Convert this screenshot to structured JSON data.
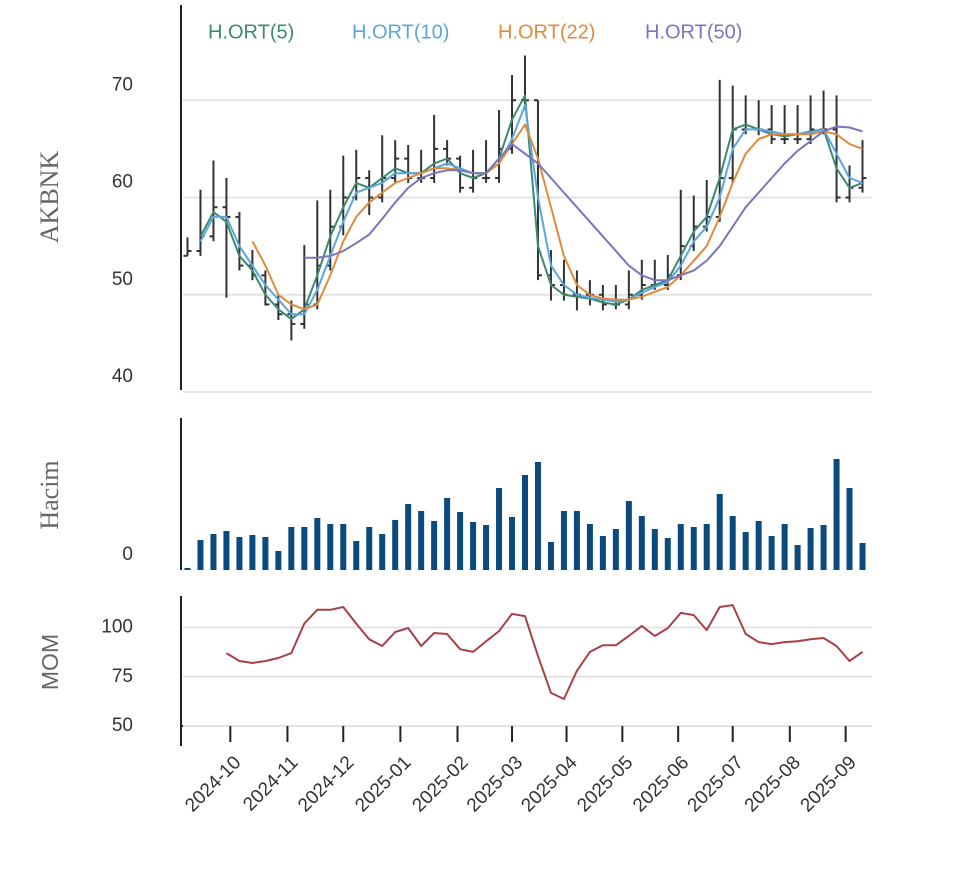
{
  "chart_data": [
    {
      "type": "candlestick",
      "y_label": "AKBNK",
      "x": [
        0,
        1,
        2,
        3,
        4,
        5,
        6,
        7,
        8,
        9,
        10,
        11,
        12,
        13,
        14,
        15,
        16,
        17,
        18,
        19,
        20,
        21,
        22,
        23,
        24,
        25,
        26,
        27,
        28,
        29,
        30,
        31,
        32,
        33,
        34,
        35,
        36,
        37,
        38,
        39,
        40,
        41,
        42,
        43,
        44,
        45,
        46,
        47,
        48,
        49,
        50,
        51,
        52
      ],
      "open": [
        54,
        54.5,
        56,
        59,
        58,
        53,
        52,
        49,
        48,
        47,
        49,
        53,
        57,
        60,
        62,
        60,
        62,
        64,
        62,
        62,
        65,
        64,
        61,
        62,
        62,
        65,
        70,
        70,
        52,
        51,
        50,
        50,
        50,
        49,
        49,
        50,
        51,
        51,
        52,
        55,
        57,
        58,
        62,
        67,
        67,
        67,
        66,
        66,
        66,
        67,
        67,
        60,
        61
      ],
      "high": [
        55.9,
        60.8,
        63.8,
        62,
        58.5,
        54.6,
        52.5,
        50,
        49.4,
        55.1,
        59.7,
        60.8,
        64.3,
        64.9,
        62.8,
        66.4,
        65.9,
        65.4,
        64.9,
        68.5,
        65.9,
        64.3,
        64.9,
        65.9,
        69,
        72.6,
        74.6,
        70,
        54.6,
        53.6,
        52.5,
        51.5,
        51,
        51,
        52.5,
        53.6,
        53.6,
        54.1,
        60.8,
        60.2,
        61.8,
        72.1,
        71.5,
        70.5,
        70,
        69.5,
        69.5,
        69.5,
        70.5,
        71,
        70.5,
        63.3,
        65.9
      ],
      "low": [
        54,
        54,
        55.5,
        49.7,
        52.5,
        51.5,
        48.9,
        47.4,
        45.3,
        46.5,
        48.5,
        52.5,
        56.1,
        59.7,
        58.2,
        59.5,
        61.5,
        61.5,
        61.5,
        61.5,
        63.3,
        60.5,
        60.5,
        61.5,
        61.5,
        64.5,
        69,
        51.5,
        49.4,
        49.4,
        48.4,
        48.9,
        48.4,
        48.5,
        48.5,
        49.5,
        50.5,
        50.5,
        51.5,
        54.5,
        56.5,
        57.5,
        61.5,
        66.5,
        66.4,
        65.5,
        65.5,
        65.5,
        65.5,
        66.5,
        59.5,
        59.5,
        60.5
      ],
      "close": [
        54.5,
        56,
        59,
        58,
        53,
        52,
        49,
        48,
        47,
        49,
        53,
        57,
        60,
        62,
        60,
        62,
        64,
        62,
        62,
        65,
        64,
        61,
        62,
        62,
        65,
        70,
        70,
        52,
        51,
        50,
        50,
        50,
        49,
        49,
        50,
        51,
        51,
        52,
        55,
        57,
        58,
        62,
        67,
        67,
        67,
        66,
        66,
        66,
        67,
        67,
        60,
        61,
        62
      ],
      "candle_color": "#333333",
      "series": [
        {
          "name": "H.ORT(5)",
          "color": "#3d8a72",
          "values": [
            null,
            56,
            58.5,
            57.5,
            54,
            52.5,
            50,
            48.5,
            47.5,
            48.5,
            52,
            56,
            59,
            61.5,
            61,
            62,
            63,
            62.5,
            62.5,
            63.5,
            64,
            62.5,
            62,
            62.5,
            64,
            68,
            70.5,
            55,
            51,
            50,
            49.8,
            49.6,
            49.2,
            49,
            49.5,
            50.5,
            51,
            51.5,
            54,
            56.5,
            58,
            62,
            67,
            67.5,
            67,
            66.5,
            66.3,
            66.5,
            66.8,
            67,
            63,
            61,
            61.5
          ]
        },
        {
          "name": "H.ORT(10)",
          "color": "#5aa6e0",
          "values": [
            null,
            55.5,
            58,
            58,
            55,
            53,
            51,
            49.5,
            48,
            48,
            50.5,
            54,
            57.5,
            60.5,
            61,
            61.5,
            62.5,
            62.5,
            62.5,
            63,
            63.5,
            63,
            62.5,
            62.5,
            63.5,
            66,
            69.5,
            60,
            53,
            51,
            50,
            49.7,
            49.5,
            49.3,
            49.5,
            50.2,
            50.8,
            51.3,
            53,
            55.5,
            57,
            60,
            65,
            67,
            67,
            66.8,
            66.5,
            66.5,
            66.7,
            67,
            64.5,
            62,
            61.5
          ]
        },
        {
          "name": "H.ORT(22)",
          "color": "#e08b3c",
          "values": [
            null,
            null,
            null,
            null,
            null,
            55.5,
            53,
            50,
            49,
            48.5,
            49,
            52,
            55.5,
            58,
            59.5,
            60.5,
            61.5,
            62,
            62.5,
            63,
            63,
            62.8,
            62.5,
            62.5,
            63.5,
            65.5,
            67.5,
            64,
            59,
            54,
            51,
            50,
            49.6,
            49.5,
            49.5,
            49.8,
            50.3,
            50.8,
            52,
            53.5,
            55,
            58,
            61.5,
            64.5,
            66,
            66.5,
            66.5,
            66.5,
            66.5,
            66.8,
            66.5,
            65.5,
            65
          ]
        },
        {
          "name": "H.ORT(50)",
          "color": "#7b74c0",
          "values": [
            null,
            null,
            null,
            null,
            null,
            null,
            null,
            null,
            null,
            53.8,
            53.8,
            54,
            54.5,
            55.3,
            56.2,
            57.8,
            59.5,
            61,
            62,
            62.5,
            62.8,
            62.8,
            62.5,
            62.5,
            64,
            65.5,
            64.5,
            63.5,
            62,
            60.5,
            59,
            57.5,
            56,
            54.5,
            53,
            52,
            51.5,
            51.5,
            52,
            52.5,
            53.5,
            55,
            57,
            59,
            60.5,
            62,
            63.5,
            64.8,
            65.8,
            66.8,
            67.3,
            67.2,
            66.8
          ]
        }
      ],
      "ylim": [
        40,
        80
      ],
      "yticks": [
        40,
        50,
        60,
        70
      ],
      "grid": true
    },
    {
      "type": "bar",
      "y_label": "Hacim",
      "values": [
        2,
        30,
        36,
        39,
        33,
        35,
        33,
        19,
        43,
        43,
        52,
        46,
        46,
        29,
        43,
        36,
        50,
        66,
        59,
        49,
        72,
        58,
        48,
        45,
        82,
        53,
        95,
        108,
        28,
        59,
        59,
        46,
        34,
        41,
        69,
        54,
        41,
        32,
        46,
        43,
        46,
        76,
        54,
        38,
        49,
        34,
        46,
        25,
        42,
        45,
        111,
        82,
        27
      ],
      "color": "#0b4a7c",
      "ylim": [
        0,
        152
      ],
      "yticks": [
        0
      ],
      "grid": false
    },
    {
      "type": "line",
      "y_label": "MOM",
      "series": [
        {
          "color": "#a8404a",
          "values": [
            null,
            null,
            null,
            87,
            83,
            82,
            83,
            84.5,
            87,
            102,
            109,
            109,
            110.4,
            102,
            94,
            90.6,
            97.7,
            99.7,
            90.6,
            97.2,
            96.7,
            89,
            87.6,
            93,
            98.2,
            106.9,
            105.8,
            85.5,
            66.8,
            63.7,
            78,
            87.6,
            91,
            91,
            95.7,
            100.8,
            95.7,
            99.7,
            107.4,
            106.3,
            98.7,
            110.4,
            111.4,
            96.7,
            92.6,
            91.6,
            92.6,
            93,
            94,
            94.7,
            90.6,
            83,
            87.6
          ]
        }
      ],
      "ylim": [
        50,
        116
      ],
      "yticks": [
        50,
        75,
        100
      ],
      "grid": true,
      "xlim": [
        -0.5,
        52.5
      ],
      "xticks": [
        {
          "value": 3.3,
          "label": "2024-10"
        },
        {
          "value": 7.7,
          "label": "2024-11"
        },
        {
          "value": 12,
          "label": "2024-12"
        },
        {
          "value": 16.4,
          "label": "2025-01"
        },
        {
          "value": 20.8,
          "label": "2025-02"
        },
        {
          "value": 25,
          "label": "2025-03"
        },
        {
          "value": 29.2,
          "label": "2025-04"
        },
        {
          "value": 33.5,
          "label": "2025-05"
        },
        {
          "value": 37.8,
          "label": "2025-06"
        },
        {
          "value": 42,
          "label": "2025-07"
        },
        {
          "value": 46.4,
          "label": "2025-08"
        },
        {
          "value": 50.7,
          "label": "2025-09"
        }
      ]
    }
  ]
}
